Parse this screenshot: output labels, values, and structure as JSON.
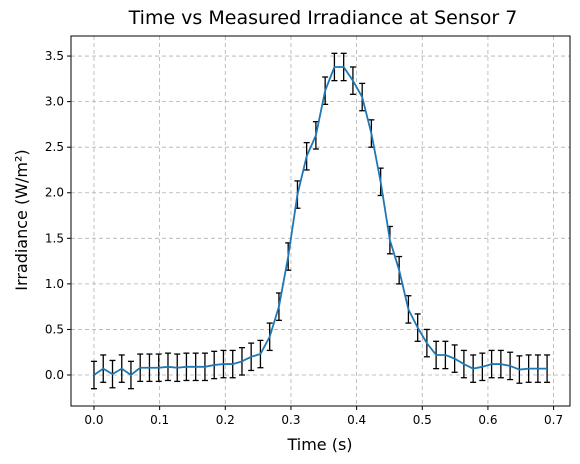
{
  "chart_data": {
    "type": "line",
    "title": "Time vs Measured Irradiance at Sensor 7",
    "xlabel": "Time (s)",
    "ylabel": "Irradiance (W/m²)",
    "xlim": [
      -0.035,
      0.725
    ],
    "ylim": [
      -0.34,
      3.72
    ],
    "xticks": [
      0.0,
      0.1,
      0.2,
      0.3,
      0.4,
      0.5,
      0.6,
      0.7
    ],
    "xtick_labels": [
      "0.0",
      "0.1",
      "0.2",
      "0.3",
      "0.4",
      "0.5",
      "0.6",
      "0.7"
    ],
    "yticks": [
      0.0,
      0.5,
      1.0,
      1.5,
      2.0,
      2.5,
      3.0,
      3.5
    ],
    "ytick_labels": [
      "0.0",
      "0.5",
      "1.0",
      "1.5",
      "2.0",
      "2.5",
      "3.0",
      "3.5"
    ],
    "grid": true,
    "legend": "none",
    "series": [
      {
        "color": "#1f77b4",
        "error_color": "#000000",
        "x": [
          0.0,
          0.0141,
          0.0282,
          0.0423,
          0.0563,
          0.0704,
          0.0845,
          0.0986,
          0.1127,
          0.1268,
          0.1408,
          0.1549,
          0.169,
          0.1831,
          0.1972,
          0.2113,
          0.2254,
          0.2394,
          0.2535,
          0.2676,
          0.2817,
          0.2958,
          0.3099,
          0.3239,
          0.338,
          0.3521,
          0.3662,
          0.3803,
          0.3944,
          0.4085,
          0.4225,
          0.4366,
          0.4507,
          0.4648,
          0.4789,
          0.493,
          0.507,
          0.5211,
          0.5352,
          0.5493,
          0.5634,
          0.5775,
          0.5915,
          0.6056,
          0.6197,
          0.6338,
          0.6479,
          0.662,
          0.6761,
          0.6901
        ],
        "y": [
          0.0,
          0.07,
          0.01,
          0.07,
          0.0,
          0.08,
          0.08,
          0.08,
          0.09,
          0.08,
          0.09,
          0.09,
          0.09,
          0.11,
          0.12,
          0.12,
          0.15,
          0.2,
          0.23,
          0.42,
          0.75,
          1.3,
          1.98,
          2.4,
          2.63,
          3.12,
          3.38,
          3.38,
          3.23,
          3.05,
          2.65,
          2.12,
          1.48,
          1.15,
          0.72,
          0.52,
          0.35,
          0.22,
          0.22,
          0.18,
          0.12,
          0.07,
          0.09,
          0.12,
          0.12,
          0.1,
          0.06,
          0.07,
          0.07,
          0.07
        ],
        "yerr": [
          0.15,
          0.15,
          0.15,
          0.15,
          0.15,
          0.15,
          0.15,
          0.15,
          0.15,
          0.15,
          0.15,
          0.15,
          0.15,
          0.15,
          0.15,
          0.15,
          0.15,
          0.15,
          0.15,
          0.15,
          0.15,
          0.15,
          0.15,
          0.15,
          0.15,
          0.15,
          0.15,
          0.15,
          0.15,
          0.15,
          0.15,
          0.15,
          0.15,
          0.15,
          0.15,
          0.15,
          0.15,
          0.15,
          0.15,
          0.15,
          0.15,
          0.15,
          0.15,
          0.15,
          0.15,
          0.15,
          0.15,
          0.15,
          0.15,
          0.15
        ]
      }
    ]
  }
}
